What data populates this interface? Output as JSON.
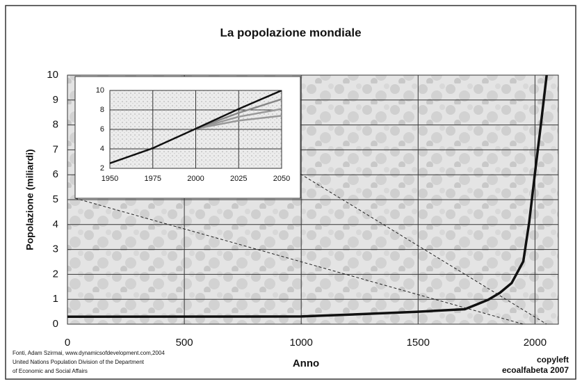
{
  "chart_data": [
    {
      "type": "line",
      "title": "La popolazione mondiale",
      "xlabel": "Anno",
      "ylabel": "Popolazione (miliardi)",
      "x": [
        0,
        1000,
        1250,
        1500,
        1600,
        1700,
        1750,
        1800,
        1850,
        1900,
        1950,
        1975,
        2000,
        2025,
        2050
      ],
      "values": [
        0.3,
        0.31,
        0.4,
        0.5,
        0.55,
        0.6,
        0.79,
        0.98,
        1.26,
        1.65,
        2.52,
        4.07,
        6.07,
        8,
        10
      ],
      "color": "#111111",
      "xlim": [
        0,
        2100
      ],
      "xticks": [
        0,
        500,
        1000,
        1500,
        2000
      ],
      "ylim": [
        0,
        10
      ],
      "yticks": [
        0,
        1,
        2,
        3,
        4,
        5,
        6,
        7,
        8,
        9,
        10
      ],
      "grid": true,
      "source": [
        "Fonti, Adam Szirmai, www.dynamicsofdevelopment.com,2004",
        "United Nations Population Division of the Department",
        "of Economic and Social Affairs"
      ],
      "credit": [
        "copyleft",
        "ecoalfabeta 2007"
      ]
    },
    {
      "type": "line",
      "x": [
        1950,
        1975,
        2000,
        2025,
        2050
      ],
      "series": [
        {
          "color": "#999999",
          "values": [
            null,
            null,
            6.07,
            6.9,
            7.4
          ]
        },
        {
          "color": "#999999",
          "values": [
            null,
            null,
            6.07,
            7.3,
            8.1
          ]
        },
        {
          "color": "#888888",
          "values": [
            null,
            null,
            6.07,
            7.7,
            9.1
          ]
        },
        {
          "color": "#111111",
          "values": [
            2.52,
            4.07,
            6.07,
            8.1,
            10
          ]
        }
      ],
      "xlim": [
        1950,
        2050
      ],
      "xticks": [
        1950,
        1975,
        2000,
        2025,
        2050
      ],
      "ylim": [
        2,
        10
      ],
      "yticks": [
        2,
        4,
        6,
        8,
        10
      ],
      "grid": true
    }
  ]
}
